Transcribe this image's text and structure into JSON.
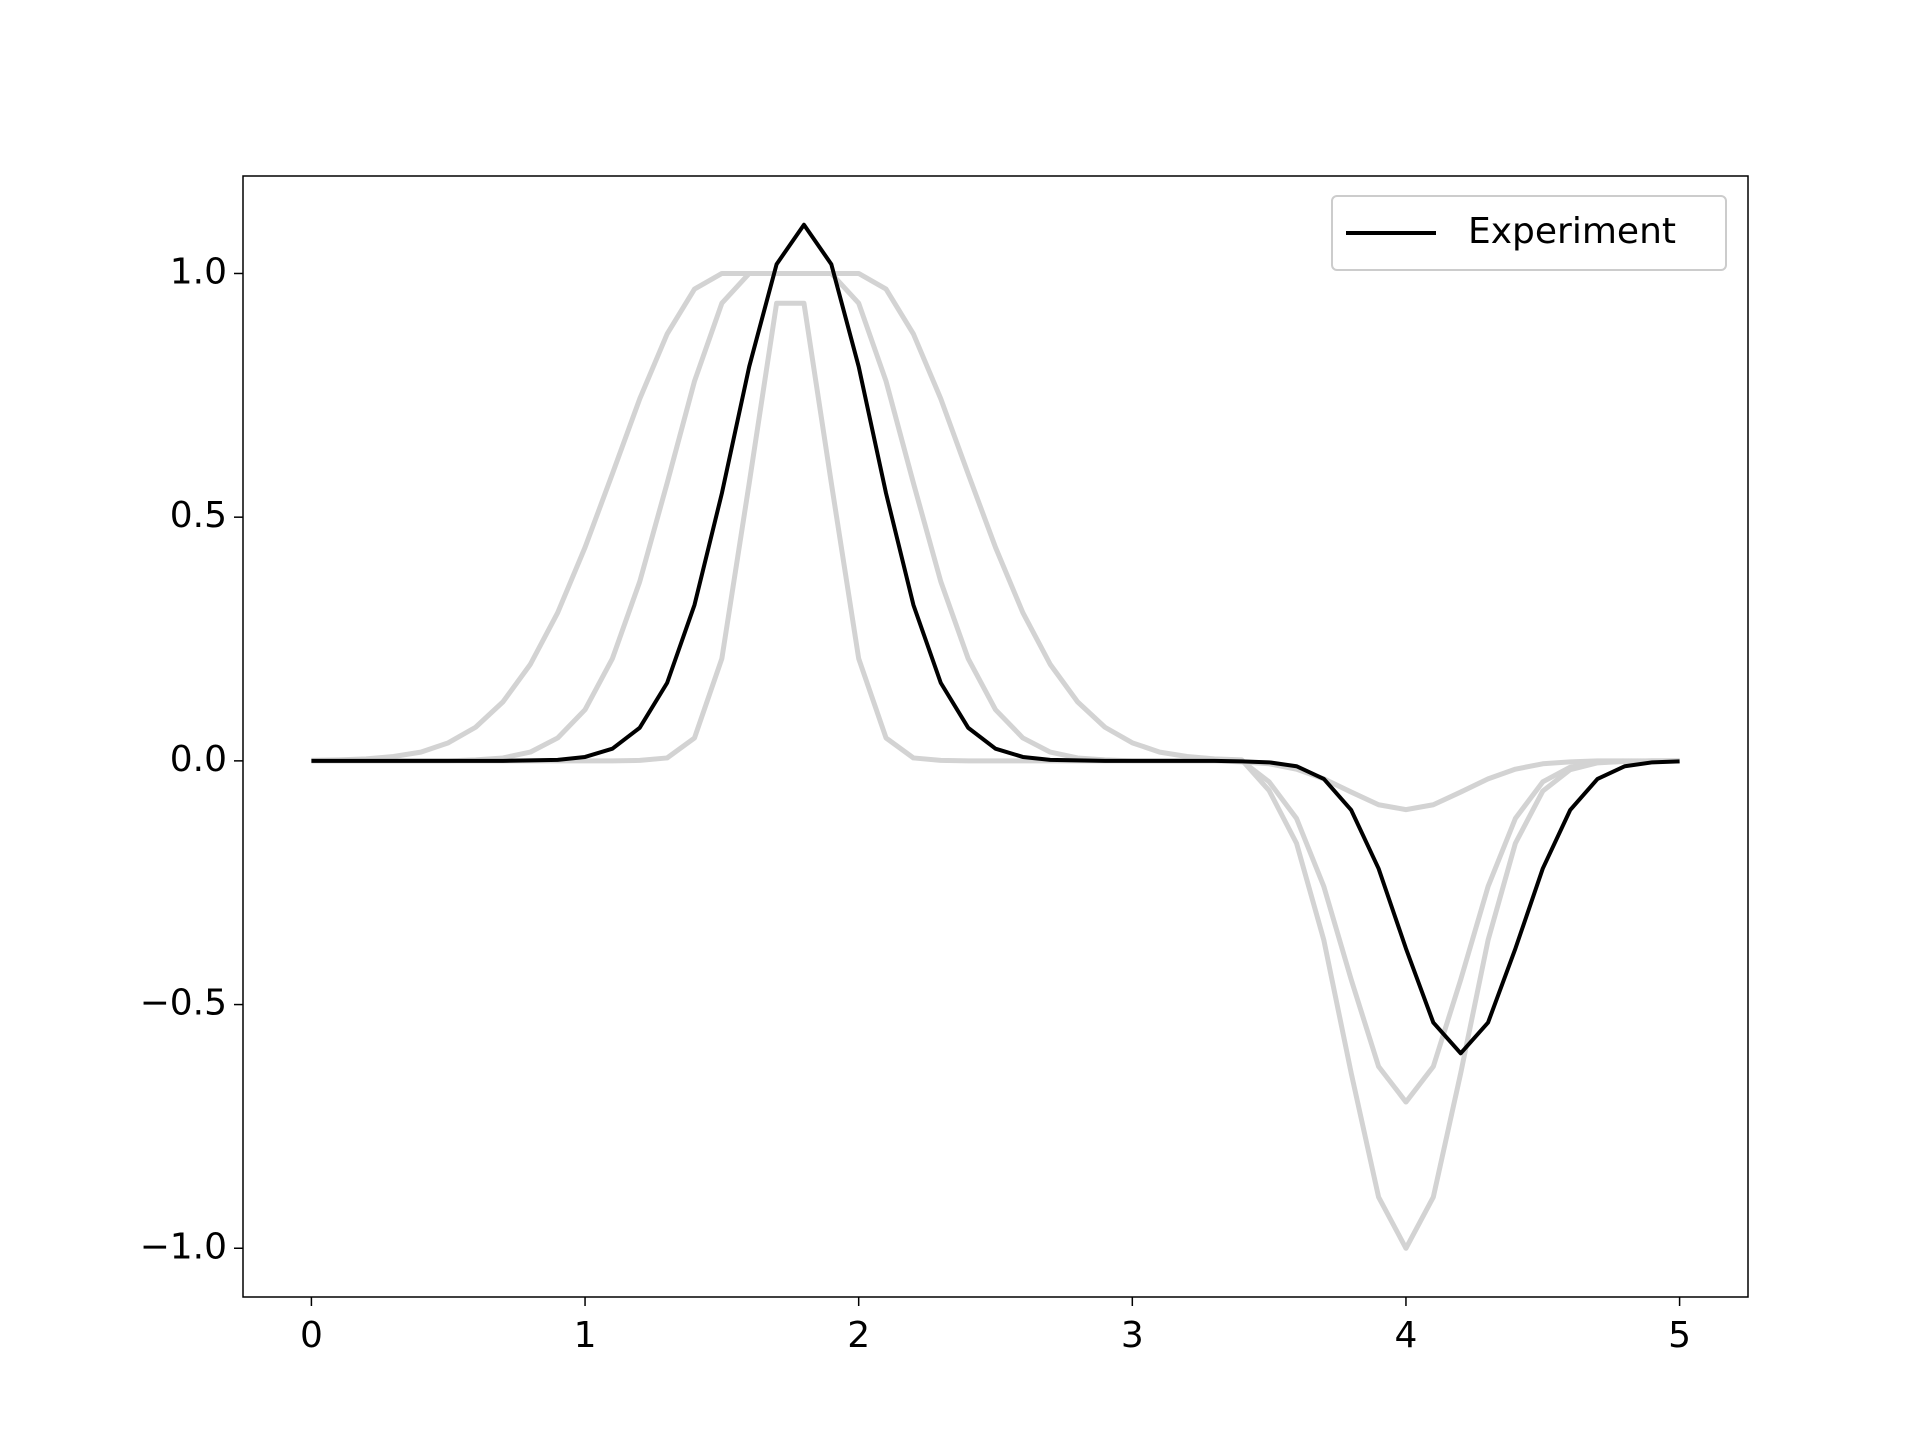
{
  "chart_data": {
    "type": "line",
    "x": [
      0,
      0.1,
      0.2,
      0.3,
      0.4,
      0.5,
      0.6,
      0.7,
      0.8,
      0.9,
      1.0,
      1.1,
      1.2,
      1.3,
      1.4,
      1.5,
      1.6,
      1.7,
      1.8,
      1.9,
      2.0,
      2.1,
      2.2,
      2.3,
      2.4,
      2.5,
      2.6,
      2.7,
      2.8,
      2.9,
      3.0,
      3.1,
      3.2,
      3.3,
      3.4,
      3.5,
      3.6,
      3.7,
      3.8,
      3.9,
      4.0,
      4.1,
      4.2,
      4.3,
      4.4,
      4.5,
      4.6,
      4.7,
      4.8,
      4.9,
      5.0
    ],
    "series": [
      {
        "color": "#d3d3d3",
        "values": [
          0.001,
          0.002,
          0.004,
          0.009,
          0.018,
          0.037,
          0.069,
          0.121,
          0.198,
          0.304,
          0.438,
          0.589,
          0.743,
          0.876,
          0.968,
          1,
          1,
          1,
          1,
          1,
          1,
          0.968,
          0.876,
          0.743,
          0.589,
          0.438,
          0.304,
          0.198,
          0.121,
          0.069,
          0.037,
          0.018,
          0.009,
          0.004,
          0.002,
          -0.061,
          -0.169,
          -0.368,
          -0.641,
          -0.895,
          -1,
          -0.895,
          -0.641,
          -0.368,
          -0.169,
          -0.062,
          -0.018,
          -0.004,
          -0.001,
          0,
          0
        ]
      },
      {
        "color": "#d3d3d3",
        "values": [
          0,
          0,
          0,
          0,
          0,
          0,
          0,
          0,
          0,
          0,
          0,
          0,
          0.001,
          0.006,
          0.047,
          0.21,
          0.57,
          0.939,
          0.939,
          0.57,
          0.21,
          0.047,
          0.006,
          0.001,
          0,
          0,
          0,
          0,
          0,
          0,
          0,
          0,
          0,
          0,
          -0.002,
          -0.006,
          -0.017,
          -0.037,
          -0.064,
          -0.09,
          -0.1,
          -0.09,
          -0.064,
          -0.037,
          -0.017,
          -0.006,
          -0.002,
          0,
          0,
          0,
          0
        ]
      },
      {
        "color": "#d3d3d3",
        "values": [
          0,
          0,
          0,
          0,
          0,
          0,
          0.002,
          0.006,
          0.018,
          0.047,
          0.105,
          0.21,
          0.368,
          0.57,
          0.779,
          0.939,
          1,
          1,
          1,
          1,
          0.939,
          0.779,
          0.57,
          0.368,
          0.21,
          0.105,
          0.047,
          0.018,
          0.006,
          0.002,
          0,
          0,
          0,
          0,
          0,
          -0.043,
          -0.118,
          -0.258,
          -0.449,
          -0.627,
          -0.7,
          -0.627,
          -0.449,
          -0.258,
          -0.118,
          -0.043,
          -0.013,
          -0.003,
          -0.001,
          0,
          0
        ]
      },
      {
        "name": "Experiment",
        "color": "#000000",
        "values": [
          0,
          0,
          0,
          0,
          0,
          0,
          0,
          0,
          0.001,
          0.002,
          0.008,
          0.025,
          0.068,
          0.16,
          0.32,
          0.549,
          0.809,
          1.019,
          1.1,
          1.019,
          0.809,
          0.549,
          0.32,
          0.16,
          0.068,
          0.025,
          0.008,
          0.002,
          0.001,
          0,
          0,
          0,
          0,
          0,
          -0.001,
          -0.003,
          -0.011,
          -0.037,
          -0.101,
          -0.221,
          -0.385,
          -0.537,
          -0.6,
          -0.537,
          -0.385,
          -0.221,
          -0.101,
          -0.037,
          -0.011,
          -0.003,
          -0.001
        ]
      }
    ],
    "xlim": [
      -0.25,
      5.25
    ],
    "xticks": [
      0,
      1,
      2,
      3,
      4,
      5
    ],
    "ylim": [
      -1.1,
      1.2
    ],
    "yticks": [
      {
        "value": -1.0,
        "label": "−1.0"
      },
      {
        "value": -0.5,
        "label": "−0.5"
      },
      {
        "value": 0,
        "label": "0.0"
      },
      0.5,
      {
        "value": 1.0,
        "label": "1.0"
      }
    ],
    "grid": false,
    "legend": "upper right"
  }
}
